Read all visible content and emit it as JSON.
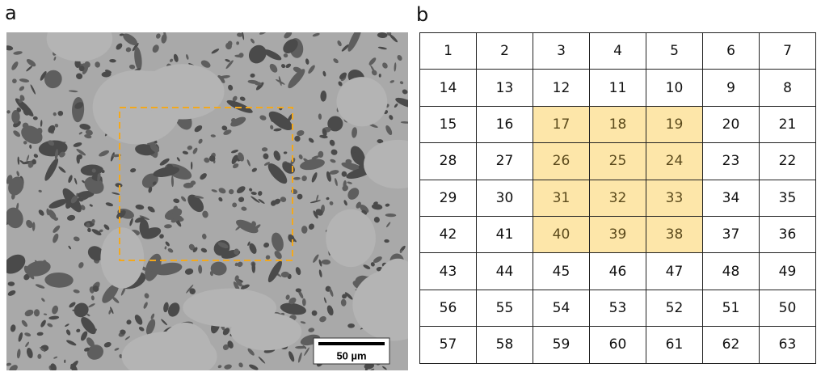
{
  "panel_a": {
    "label": "a",
    "scale_bar": "50 µm"
  },
  "panel_b": {
    "label": "b",
    "table": {
      "rows": [
        [
          1,
          2,
          3,
          4,
          5,
          6,
          7
        ],
        [
          14,
          13,
          12,
          11,
          10,
          9,
          8
        ],
        [
          15,
          16,
          17,
          18,
          19,
          20,
          21
        ],
        [
          28,
          27,
          26,
          25,
          24,
          23,
          22
        ],
        [
          29,
          30,
          31,
          32,
          33,
          34,
          35
        ],
        [
          42,
          41,
          40,
          39,
          38,
          37,
          36
        ],
        [
          43,
          44,
          45,
          46,
          47,
          48,
          49
        ],
        [
          56,
          55,
          54,
          53,
          52,
          51,
          50
        ],
        [
          57,
          58,
          59,
          60,
          61,
          62,
          63
        ]
      ]
    }
  }
}
